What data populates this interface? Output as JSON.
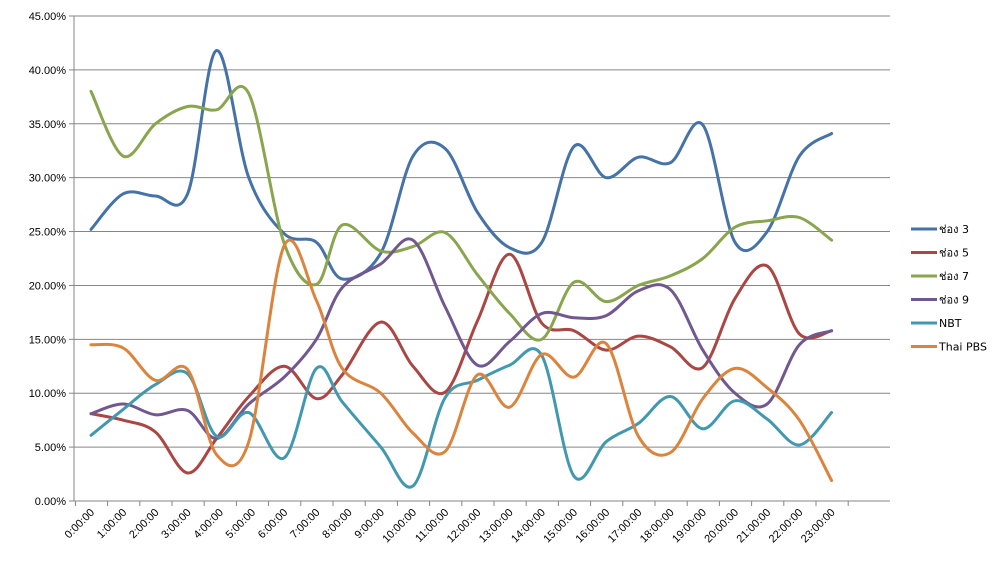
{
  "chart_data": {
    "type": "line",
    "title": "",
    "xlabel": "",
    "ylabel": "",
    "ylim": [
      0,
      45
    ],
    "y_tick_step": 5,
    "y_tick_labels": [
      "0.00%",
      "5.00%",
      "10.00%",
      "15.00%",
      "20.00%",
      "25.00%",
      "30.00%",
      "35.00%",
      "40.00%",
      "45.00%"
    ],
    "grid": true,
    "legend_position": "right",
    "categories": [
      "0:00:00",
      "1:00:00",
      "2:00:00",
      "3:00:00",
      "4:00:00",
      "5:00:00",
      "6:00:00",
      "7:00:00",
      "8:00:00",
      "9:00:00",
      "10:00:00",
      "11:00:00",
      "12:00:00",
      "13:00:00",
      "14:00:00",
      "15:00:00",
      "16:00:00",
      "17:00:00",
      "18:00:00",
      "19:00:00",
      "20:00:00",
      "21:00:00",
      "22:00:00",
      "23:00:00"
    ],
    "x_positions": [
      0,
      1.0,
      2.0,
      3.0,
      3.9,
      4.9,
      6.0,
      7.0,
      7.8,
      9.0,
      10.0,
      11.0,
      12.0,
      13.0,
      14.0,
      15.0,
      16.0,
      17.0,
      18.0,
      19.0,
      20.0,
      21.0,
      22.0,
      23.0
    ],
    "series": [
      {
        "name": "ช่อง 3",
        "color": "#4572A7",
        "values": [
          25.2,
          28.5,
          28.3,
          28.5,
          41.8,
          30.0,
          24.8,
          24.0,
          20.6,
          23.0,
          32.0,
          32.7,
          26.8,
          23.5,
          24.0,
          32.9,
          30.0,
          31.9,
          31.4,
          34.9,
          24.0,
          25.0,
          32.0,
          34.1
        ]
      },
      {
        "name": "ช่อง 5",
        "color": "#AA4643",
        "values": [
          8.1,
          7.5,
          6.4,
          2.6,
          5.8,
          9.7,
          12.5,
          9.5,
          11.7,
          16.6,
          12.5,
          10.1,
          16.7,
          22.9,
          16.5,
          15.8,
          14.0,
          15.3,
          14.3,
          12.4,
          18.8,
          21.8,
          15.5,
          15.8
        ]
      },
      {
        "name": "ช่อง 7",
        "color": "#89A54E",
        "values": [
          38.0,
          32.0,
          35.0,
          36.6,
          36.3,
          37.8,
          23.9,
          20.1,
          25.6,
          23.2,
          23.6,
          24.9,
          21.0,
          17.4,
          15.0,
          20.3,
          18.5,
          20.0,
          20.9,
          22.5,
          25.4,
          26.0,
          26.3,
          24.2
        ]
      },
      {
        "name": "ช่อง 9",
        "color": "#71588F",
        "values": [
          8.1,
          9.0,
          8.0,
          8.4,
          5.8,
          9.0,
          11.5,
          15.0,
          19.8,
          22.0,
          24.2,
          18.0,
          12.6,
          14.8,
          17.4,
          17.0,
          17.2,
          19.5,
          19.6,
          14.0,
          10.0,
          9.0,
          14.5,
          15.8
        ]
      },
      {
        "name": "NBT",
        "color": "#4198AF",
        "values": [
          6.1,
          8.5,
          10.8,
          11.8,
          6.0,
          8.2,
          4.0,
          12.3,
          9.2,
          5.0,
          1.4,
          9.6,
          11.2,
          12.6,
          13.5,
          2.3,
          5.5,
          7.2,
          9.7,
          6.7,
          9.3,
          7.6,
          5.2,
          8.2
        ]
      },
      {
        "name": "Thai PBS",
        "color": "#DB843D",
        "values": [
          14.5,
          14.2,
          11.2,
          12.2,
          4.3,
          5.5,
          23.7,
          18.6,
          12.3,
          10.0,
          6.3,
          4.6,
          11.7,
          8.7,
          13.6,
          11.5,
          14.6,
          6.0,
          4.5,
          9.5,
          12.3,
          10.5,
          7.5,
          1.9
        ]
      }
    ]
  }
}
